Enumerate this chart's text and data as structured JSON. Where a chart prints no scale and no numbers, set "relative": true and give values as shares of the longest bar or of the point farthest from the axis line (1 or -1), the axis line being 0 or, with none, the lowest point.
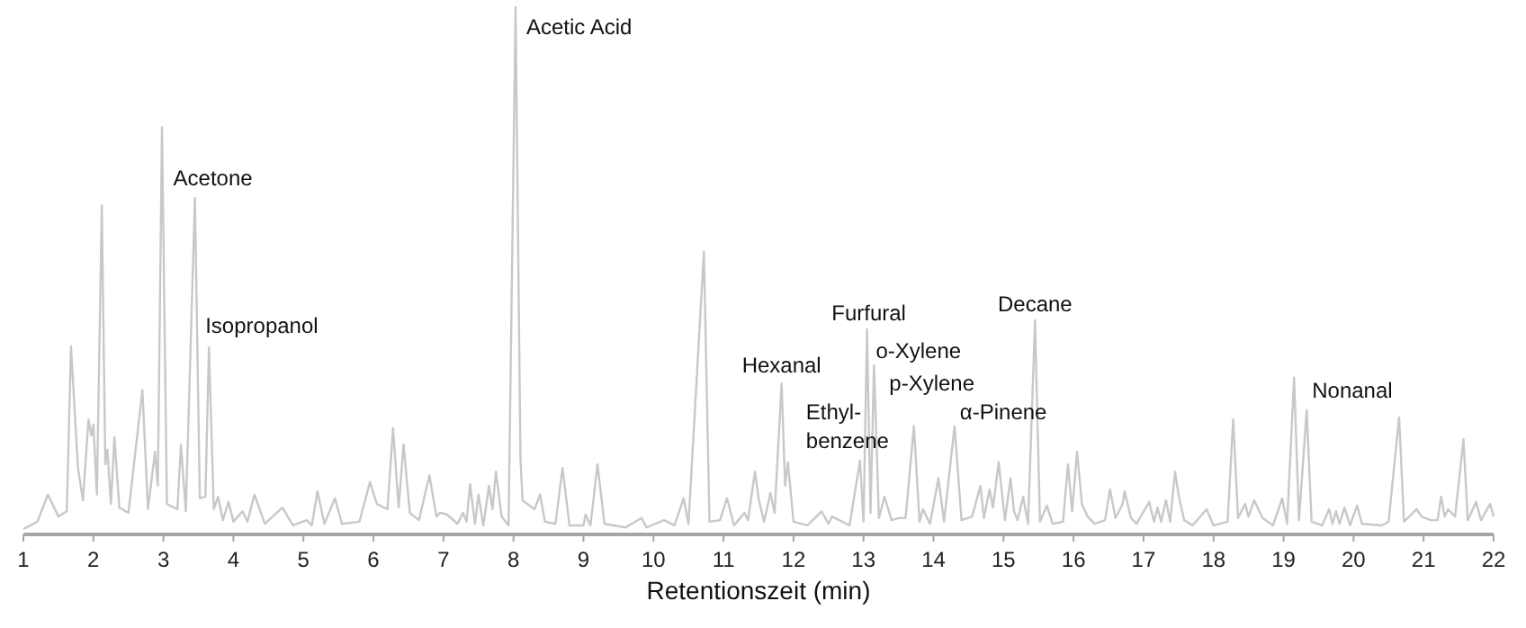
{
  "chart_data": {
    "type": "line",
    "relative": true,
    "xlabel": "Retentionszeit (min)",
    "xlim": [
      1,
      22
    ],
    "xticks": [
      1,
      2,
      3,
      4,
      5,
      6,
      7,
      8,
      9,
      10,
      11,
      12,
      13,
      14,
      15,
      16,
      17,
      18,
      19,
      20,
      21,
      22
    ],
    "grid": false,
    "marker": "none",
    "series": [
      {
        "color": "#c8c8c8",
        "x": [
          1,
          1.2,
          1.35,
          1.5,
          1.62,
          1.68,
          1.78,
          1.85,
          1.93,
          1.97,
          2,
          2.05,
          2.12,
          2.17,
          2.2,
          2.25,
          2.3,
          2.37,
          2.5,
          2.7,
          2.78,
          2.88,
          2.92,
          2.98,
          3.05,
          3.2,
          3.25,
          3.32,
          3.45,
          3.52,
          3.6,
          3.65,
          3.72,
          3.78,
          3.85,
          3.93,
          4,
          4.13,
          4.2,
          4.3,
          4.45,
          4.7,
          4.85,
          5.05,
          5.12,
          5.2,
          5.3,
          5.45,
          5.55,
          5.8,
          5.95,
          6.05,
          6.15,
          6.2,
          6.28,
          6.36,
          6.43,
          6.52,
          6.65,
          6.8,
          6.9,
          6.95,
          7.05,
          7.2,
          7.28,
          7.33,
          7.38,
          7.45,
          7.5,
          7.57,
          7.65,
          7.7,
          7.75,
          7.83,
          7.93,
          8.03,
          8.1,
          8.13,
          8.3,
          8.38,
          8.45,
          8.6,
          8.7,
          8.8,
          9,
          9.03,
          9.1,
          9.2,
          9.3,
          9.6,
          9.83,
          9.9,
          10.15,
          10.3,
          10.43,
          10.5,
          10.72,
          10.8,
          10.95,
          11.05,
          11.15,
          11.3,
          11.35,
          11.45,
          11.5,
          11.58,
          11.67,
          11.73,
          11.83,
          11.88,
          11.92,
          12,
          12.2,
          12.4,
          12.5,
          12.55,
          12.7,
          12.8,
          12.95,
          13,
          13.05,
          13.1,
          13.15,
          13.22,
          13.3,
          13.4,
          13.5,
          13.6,
          13.72,
          13.8,
          13.85,
          13.95,
          14.07,
          14.15,
          14.3,
          14.4,
          14.55,
          14.6,
          14.67,
          14.72,
          14.8,
          14.85,
          14.93,
          15.02,
          15.1,
          15.15,
          15.2,
          15.28,
          15.35,
          15.45,
          15.52,
          15.62,
          15.7,
          15.85,
          15.92,
          15.98,
          16.05,
          16.12,
          16.2,
          16.3,
          16.45,
          16.52,
          16.6,
          16.7,
          16.73,
          16.82,
          16.9,
          17.08,
          17.15,
          17.2,
          17.25,
          17.32,
          17.38,
          17.45,
          17.5,
          17.58,
          17.7,
          17.9,
          18,
          18.2,
          18.28,
          18.35,
          18.45,
          18.5,
          18.58,
          18.7,
          18.85,
          18.98,
          19.05,
          19.15,
          19.22,
          19.33,
          19.4,
          19.55,
          19.65,
          19.7,
          19.75,
          19.8,
          19.87,
          19.95,
          20.05,
          20.12,
          20.4,
          20.5,
          20.65,
          20.72,
          20.9,
          20.97,
          21.1,
          21.2,
          21.25,
          21.3,
          21.35,
          21.45,
          21.57,
          21.63,
          21.75,
          21.82,
          21.95,
          22
        ],
        "values": [
          0,
          0.014,
          0.066,
          0.024,
          0.034,
          0.35,
          0.117,
          0.055,
          0.21,
          0.179,
          0.2,
          0.066,
          0.62,
          0.124,
          0.152,
          0.048,
          0.176,
          0.041,
          0.031,
          0.266,
          0.038,
          0.148,
          0.083,
          0.77,
          0.048,
          0.038,
          0.162,
          0.034,
          0.634,
          0.059,
          0.062,
          0.348,
          0.038,
          0.062,
          0.017,
          0.052,
          0.014,
          0.034,
          0.014,
          0.066,
          0.01,
          0.041,
          0.007,
          0.017,
          0.007,
          0.072,
          0.01,
          0.059,
          0.01,
          0.014,
          0.09,
          0.048,
          0.041,
          0.038,
          0.193,
          0.041,
          0.162,
          0.031,
          0.017,
          0.103,
          0.024,
          0.031,
          0.028,
          0.01,
          0.031,
          0.014,
          0.086,
          0.01,
          0.066,
          0.007,
          0.083,
          0.038,
          0.11,
          0.024,
          0.007,
          1,
          0.134,
          0.055,
          0.038,
          0.066,
          0.014,
          0.01,
          0.117,
          0.007,
          0.007,
          0.028,
          0.007,
          0.124,
          0.01,
          0.003,
          0.021,
          0.003,
          0.017,
          0.007,
          0.059,
          0.01,
          0.531,
          0.014,
          0.017,
          0.059,
          0.007,
          0.031,
          0.017,
          0.11,
          0.059,
          0.014,
          0.069,
          0.031,
          0.279,
          0.083,
          0.128,
          0.014,
          0.007,
          0.034,
          0.01,
          0.024,
          0.014,
          0.007,
          0.131,
          0.014,
          0.383,
          0.031,
          0.314,
          0.021,
          0.062,
          0.017,
          0.021,
          0.021,
          0.197,
          0.014,
          0.038,
          0.01,
          0.097,
          0.014,
          0.197,
          0.017,
          0.024,
          0.048,
          0.083,
          0.021,
          0.076,
          0.041,
          0.128,
          0.017,
          0.097,
          0.034,
          0.017,
          0.062,
          0.01,
          0.4,
          0.014,
          0.045,
          0.01,
          0.014,
          0.124,
          0.034,
          0.148,
          0.048,
          0.024,
          0.01,
          0.017,
          0.076,
          0.021,
          0.048,
          0.072,
          0.021,
          0.01,
          0.052,
          0.014,
          0.041,
          0.014,
          0.055,
          0.014,
          0.11,
          0.066,
          0.017,
          0.007,
          0.038,
          0.007,
          0.014,
          0.21,
          0.021,
          0.048,
          0.024,
          0.055,
          0.021,
          0.007,
          0.059,
          0.01,
          0.29,
          0.017,
          0.228,
          0.014,
          0.007,
          0.038,
          0.01,
          0.034,
          0.01,
          0.041,
          0.007,
          0.045,
          0.01,
          0.007,
          0.014,
          0.214,
          0.014,
          0.038,
          0.024,
          0.017,
          0.017,
          0.062,
          0.024,
          0.038,
          0.024,
          0.172,
          0.017,
          0.052,
          0.017,
          0.048,
          0.024
        ]
      }
    ],
    "annotations": [
      {
        "text": "Acetic Acid",
        "x": 8.03,
        "y": 1
      },
      {
        "text": "Acetone",
        "x": 3.45,
        "y": 0.634
      },
      {
        "text": "Isopropanol",
        "x": 3.65,
        "y": 0.348
      },
      {
        "text": "Hexanal",
        "x": 11.83,
        "y": 0.279
      },
      {
        "text": "Ethyl-\nbenzene",
        "x": 12.95,
        "y": 0.131
      },
      {
        "text": "Furfural",
        "x": 13.05,
        "y": 0.383
      },
      {
        "text": "o-Xylene",
        "x": 13.15,
        "y": 0.314
      },
      {
        "text": "p-Xylene",
        "x": 13.72,
        "y": 0.197
      },
      {
        "text": "α-Pinene",
        "x": 14.3,
        "y": 0.197
      },
      {
        "text": "Decane",
        "x": 15.45,
        "y": 0.4
      },
      {
        "text": "Nonanal",
        "x": 19.33,
        "y": 0.228
      }
    ]
  }
}
